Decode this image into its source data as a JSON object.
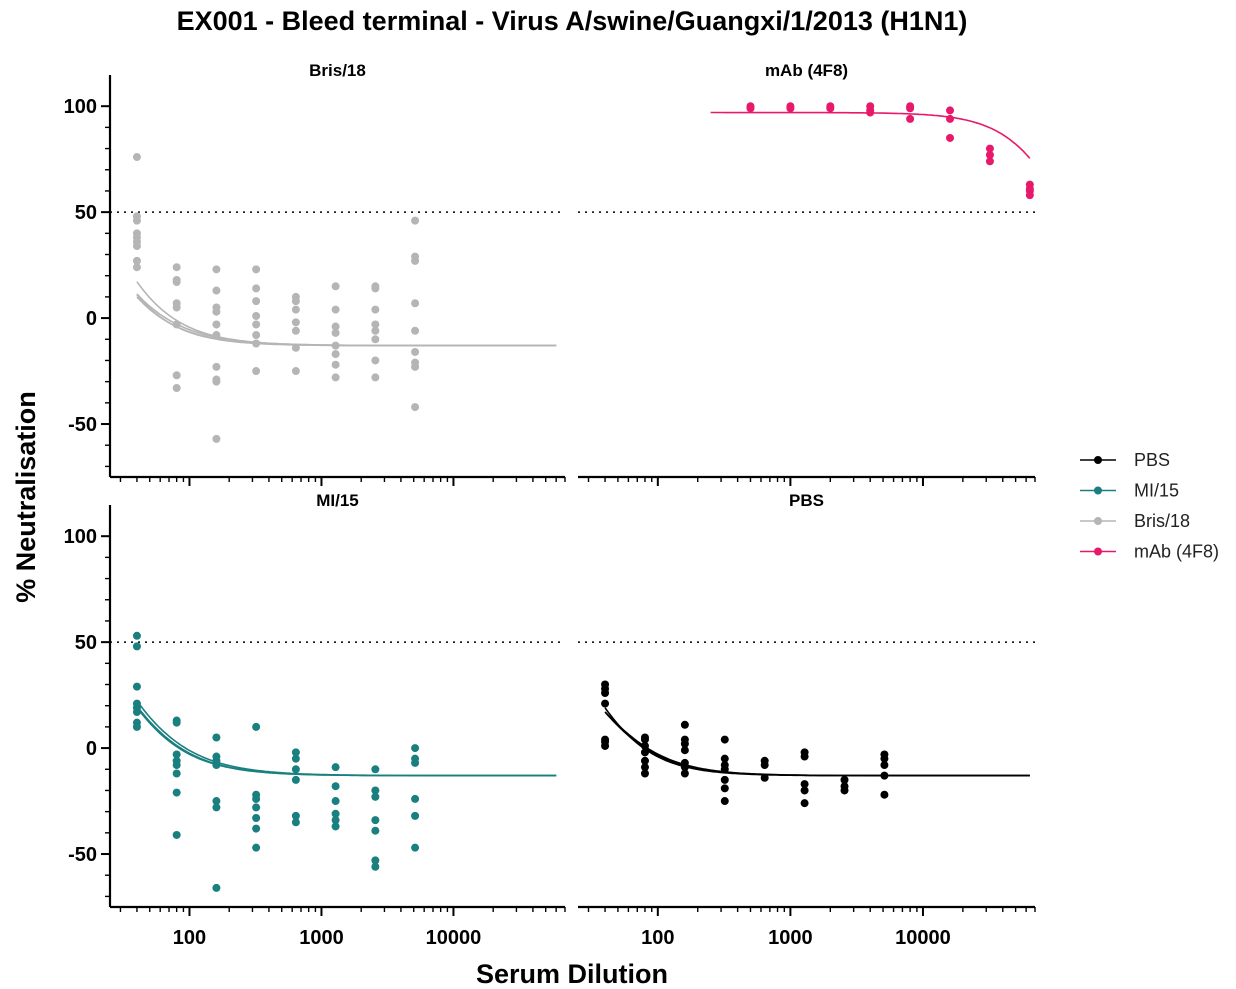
{
  "chart_data": {
    "type": "scatter",
    "title": "EX001 - Bleed terminal - Virus A/swine/Guangxi/1/2013 (H1N1)",
    "xlabel": "Serum Dilution",
    "ylabel": "% Neutralisation",
    "x_scale": "log10",
    "xlim": [
      25,
      70000
    ],
    "ylim": [
      -75,
      110
    ],
    "x_ticks": [
      100,
      1000,
      10000
    ],
    "x_tick_labels": [
      "100",
      "1000",
      "10000"
    ],
    "y_ticks": [
      100,
      50,
      0,
      -50
    ],
    "y_tick_labels": [
      "100",
      "50",
      "0",
      "-50"
    ],
    "reference_line": 50,
    "legend": {
      "position": "right",
      "entries": [
        {
          "label": "PBS",
          "color": "#000000"
        },
        {
          "label": "MI/15",
          "color": "#1a7f7f"
        },
        {
          "label": "Bris/18",
          "color": "#b5b5b5"
        },
        {
          "label": "mAb (4F8)",
          "color": "#e8186a"
        }
      ]
    },
    "panels": [
      {
        "title": "Bris/18",
        "color": "#b5b5b5",
        "points": [
          [
            40,
            76
          ],
          [
            40,
            48
          ],
          [
            40,
            46
          ],
          [
            40,
            40
          ],
          [
            40,
            38
          ],
          [
            40,
            36
          ],
          [
            40,
            34
          ],
          [
            40,
            27
          ],
          [
            40,
            24
          ],
          [
            80,
            24
          ],
          [
            80,
            18
          ],
          [
            80,
            17
          ],
          [
            80,
            7
          ],
          [
            80,
            5
          ],
          [
            80,
            -3
          ],
          [
            80,
            -27
          ],
          [
            80,
            -33
          ],
          [
            160,
            23
          ],
          [
            160,
            13
          ],
          [
            160,
            5
          ],
          [
            160,
            3
          ],
          [
            160,
            -3
          ],
          [
            160,
            -8
          ],
          [
            160,
            -23
          ],
          [
            160,
            -29
          ],
          [
            160,
            -30
          ],
          [
            160,
            -57
          ],
          [
            320,
            23
          ],
          [
            320,
            14
          ],
          [
            320,
            8
          ],
          [
            320,
            1
          ],
          [
            320,
            -3
          ],
          [
            320,
            -8
          ],
          [
            320,
            -12
          ],
          [
            320,
            -25
          ],
          [
            640,
            10
          ],
          [
            640,
            8
          ],
          [
            640,
            4
          ],
          [
            640,
            -2
          ],
          [
            640,
            -6
          ],
          [
            640,
            -14
          ],
          [
            640,
            -25
          ],
          [
            1280,
            15
          ],
          [
            1280,
            4
          ],
          [
            1280,
            -4
          ],
          [
            1280,
            -7
          ],
          [
            1280,
            -13
          ],
          [
            1280,
            -17
          ],
          [
            1280,
            -22
          ],
          [
            1280,
            -28
          ],
          [
            2560,
            15
          ],
          [
            2560,
            14
          ],
          [
            2560,
            4
          ],
          [
            2560,
            -3
          ],
          [
            2560,
            -6
          ],
          [
            2560,
            -10
          ],
          [
            2560,
            -20
          ],
          [
            2560,
            -28
          ],
          [
            5120,
            46
          ],
          [
            5120,
            29
          ],
          [
            5120,
            27
          ],
          [
            5120,
            7
          ],
          [
            5120,
            -6
          ],
          [
            5120,
            -16
          ],
          [
            5120,
            -21
          ],
          [
            5120,
            -23
          ],
          [
            5120,
            -42
          ]
        ],
        "curves": [
          {
            "bottom": -13,
            "top": 150,
            "ec50": 12,
            "hill": 1.5,
            "x_range": [
              40,
              60000
            ]
          },
          {
            "bottom": -13,
            "top": 140,
            "ec50": 14,
            "hill": 1.6,
            "x_range": [
              40,
              60000
            ]
          },
          {
            "bottom": -13,
            "top": 160,
            "ec50": 11,
            "hill": 1.4,
            "x_range": [
              40,
              60000
            ]
          },
          {
            "bottom": -13,
            "top": 180,
            "ec50": 13,
            "hill": 1.5,
            "x_range": [
              40,
              60000
            ]
          }
        ]
      },
      {
        "title": "mAb (4F8)",
        "color": "#e8186a",
        "points": [
          [
            500,
            100
          ],
          [
            500,
            99
          ],
          [
            1000,
            100
          ],
          [
            1000,
            99
          ],
          [
            2000,
            100
          ],
          [
            2000,
            99
          ],
          [
            4000,
            100
          ],
          [
            4000,
            98
          ],
          [
            4000,
            97
          ],
          [
            8000,
            100
          ],
          [
            8000,
            99
          ],
          [
            8000,
            94
          ],
          [
            16000,
            98
          ],
          [
            16000,
            94
          ],
          [
            16000,
            85
          ],
          [
            32000,
            80
          ],
          [
            32000,
            77
          ],
          [
            32000,
            74
          ],
          [
            64000,
            63
          ],
          [
            64000,
            61
          ],
          [
            64000,
            60
          ],
          [
            64000,
            58
          ]
        ],
        "curves": [
          {
            "bottom": -13,
            "top": 97,
            "ec50": 140000,
            "hill": 1.8,
            "x_range": [
              250,
              64000
            ]
          }
        ]
      },
      {
        "title": "MI/15",
        "color": "#1a7f7f",
        "points": [
          [
            40,
            53
          ],
          [
            40,
            48
          ],
          [
            40,
            29
          ],
          [
            40,
            21
          ],
          [
            40,
            19
          ],
          [
            40,
            17
          ],
          [
            40,
            12
          ],
          [
            40,
            10
          ],
          [
            80,
            13
          ],
          [
            80,
            12
          ],
          [
            80,
            -3
          ],
          [
            80,
            -6
          ],
          [
            80,
            -8
          ],
          [
            80,
            -12
          ],
          [
            80,
            -21
          ],
          [
            80,
            -41
          ],
          [
            160,
            5
          ],
          [
            160,
            -4
          ],
          [
            160,
            -6
          ],
          [
            160,
            -8
          ],
          [
            160,
            -25
          ],
          [
            160,
            -28
          ],
          [
            160,
            -66
          ],
          [
            320,
            10
          ],
          [
            320,
            -22
          ],
          [
            320,
            -24
          ],
          [
            320,
            -28
          ],
          [
            320,
            -33
          ],
          [
            320,
            -38
          ],
          [
            320,
            -47
          ],
          [
            640,
            -2
          ],
          [
            640,
            -5
          ],
          [
            640,
            -10
          ],
          [
            640,
            -15
          ],
          [
            640,
            -32
          ],
          [
            640,
            -35
          ],
          [
            1280,
            -9
          ],
          [
            1280,
            -18
          ],
          [
            1280,
            -25
          ],
          [
            1280,
            -31
          ],
          [
            1280,
            -34
          ],
          [
            1280,
            -37
          ],
          [
            2560,
            -10
          ],
          [
            2560,
            -20
          ],
          [
            2560,
            -23
          ],
          [
            2560,
            -34
          ],
          [
            2560,
            -39
          ],
          [
            2560,
            -53
          ],
          [
            2560,
            -56
          ],
          [
            5120,
            0
          ],
          [
            5120,
            -5
          ],
          [
            5120,
            -7
          ],
          [
            5120,
            -24
          ],
          [
            5120,
            -32
          ],
          [
            5120,
            -47
          ]
        ],
        "curves": [
          {
            "bottom": -13,
            "top": 130,
            "ec50": 18,
            "hill": 1.4,
            "x_range": [
              40,
              60000
            ]
          },
          {
            "bottom": -13,
            "top": 110,
            "ec50": 20,
            "hill": 1.5,
            "x_range": [
              40,
              60000
            ]
          },
          {
            "bottom": -13,
            "top": 100,
            "ec50": 22,
            "hill": 1.5,
            "x_range": [
              40,
              60000
            ]
          }
        ]
      },
      {
        "title": "PBS",
        "color": "#000000",
        "points": [
          [
            40,
            30
          ],
          [
            40,
            28
          ],
          [
            40,
            26
          ],
          [
            40,
            21
          ],
          [
            40,
            4
          ],
          [
            40,
            3
          ],
          [
            40,
            1
          ],
          [
            80,
            5
          ],
          [
            80,
            4
          ],
          [
            80,
            1
          ],
          [
            80,
            -2
          ],
          [
            80,
            -6
          ],
          [
            80,
            -9
          ],
          [
            80,
            -12
          ],
          [
            160,
            11
          ],
          [
            160,
            4
          ],
          [
            160,
            2
          ],
          [
            160,
            -1
          ],
          [
            160,
            -7
          ],
          [
            160,
            -9
          ],
          [
            160,
            -12
          ],
          [
            320,
            4
          ],
          [
            320,
            -5
          ],
          [
            320,
            -8
          ],
          [
            320,
            -10
          ],
          [
            320,
            -15
          ],
          [
            320,
            -19
          ],
          [
            320,
            -25
          ],
          [
            640,
            -6
          ],
          [
            640,
            -8
          ],
          [
            640,
            -14
          ],
          [
            1280,
            -2
          ],
          [
            1280,
            -4
          ],
          [
            1280,
            -17
          ],
          [
            1280,
            -20
          ],
          [
            1280,
            -26
          ],
          [
            2560,
            -15
          ],
          [
            2560,
            -18
          ],
          [
            2560,
            -20
          ],
          [
            5120,
            -3
          ],
          [
            5120,
            -5
          ],
          [
            5120,
            -8
          ],
          [
            5120,
            -13
          ],
          [
            5120,
            -22
          ]
        ],
        "curves": [
          {
            "bottom": -13,
            "top": 90,
            "ec50": 25,
            "hill": 1.7,
            "x_range": [
              40,
              64000
            ]
          },
          {
            "bottom": -13,
            "top": 70,
            "ec50": 28,
            "hill": 1.6,
            "x_range": [
              40,
              64000
            ]
          },
          {
            "bottom": -13,
            "top": 60,
            "ec50": 32,
            "hill": 1.6,
            "x_range": [
              40,
              64000
            ]
          }
        ]
      }
    ]
  }
}
